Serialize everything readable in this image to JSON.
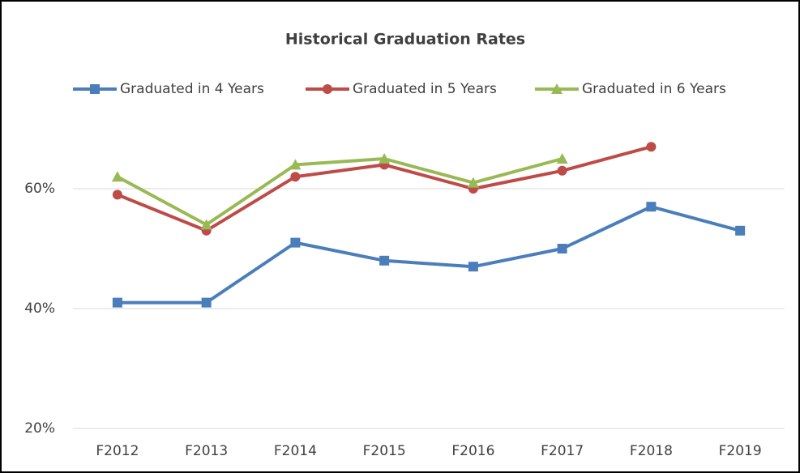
{
  "chart_data": {
    "type": "line",
    "title": "Historical Graduation Rates",
    "categories": [
      "F2012",
      "F2013",
      "F2014",
      "F2015",
      "F2016",
      "F2017",
      "F2018",
      "F2019"
    ],
    "series": [
      {
        "name": "Graduated in 4 Years",
        "color": "#4a7ebb",
        "marker": "square",
        "values": [
          41,
          41,
          51,
          48,
          47,
          50,
          57,
          53
        ]
      },
      {
        "name": "Graduated in 5 Years",
        "color": "#be4b48",
        "marker": "circle",
        "values": [
          59,
          53,
          62,
          64,
          60,
          63,
          67,
          null
        ]
      },
      {
        "name": "Graduated in 6 Years",
        "color": "#98b954",
        "marker": "triangle",
        "values": [
          62,
          54,
          64,
          65,
          61,
          65,
          null,
          null
        ]
      }
    ],
    "ylim": [
      20,
      80
    ],
    "yticks": [
      {
        "value": 20,
        "label": "20%"
      },
      {
        "value": 40,
        "label": "40%"
      },
      {
        "value": 60,
        "label": "60%"
      }
    ],
    "grid": true,
    "legend": "top"
  }
}
